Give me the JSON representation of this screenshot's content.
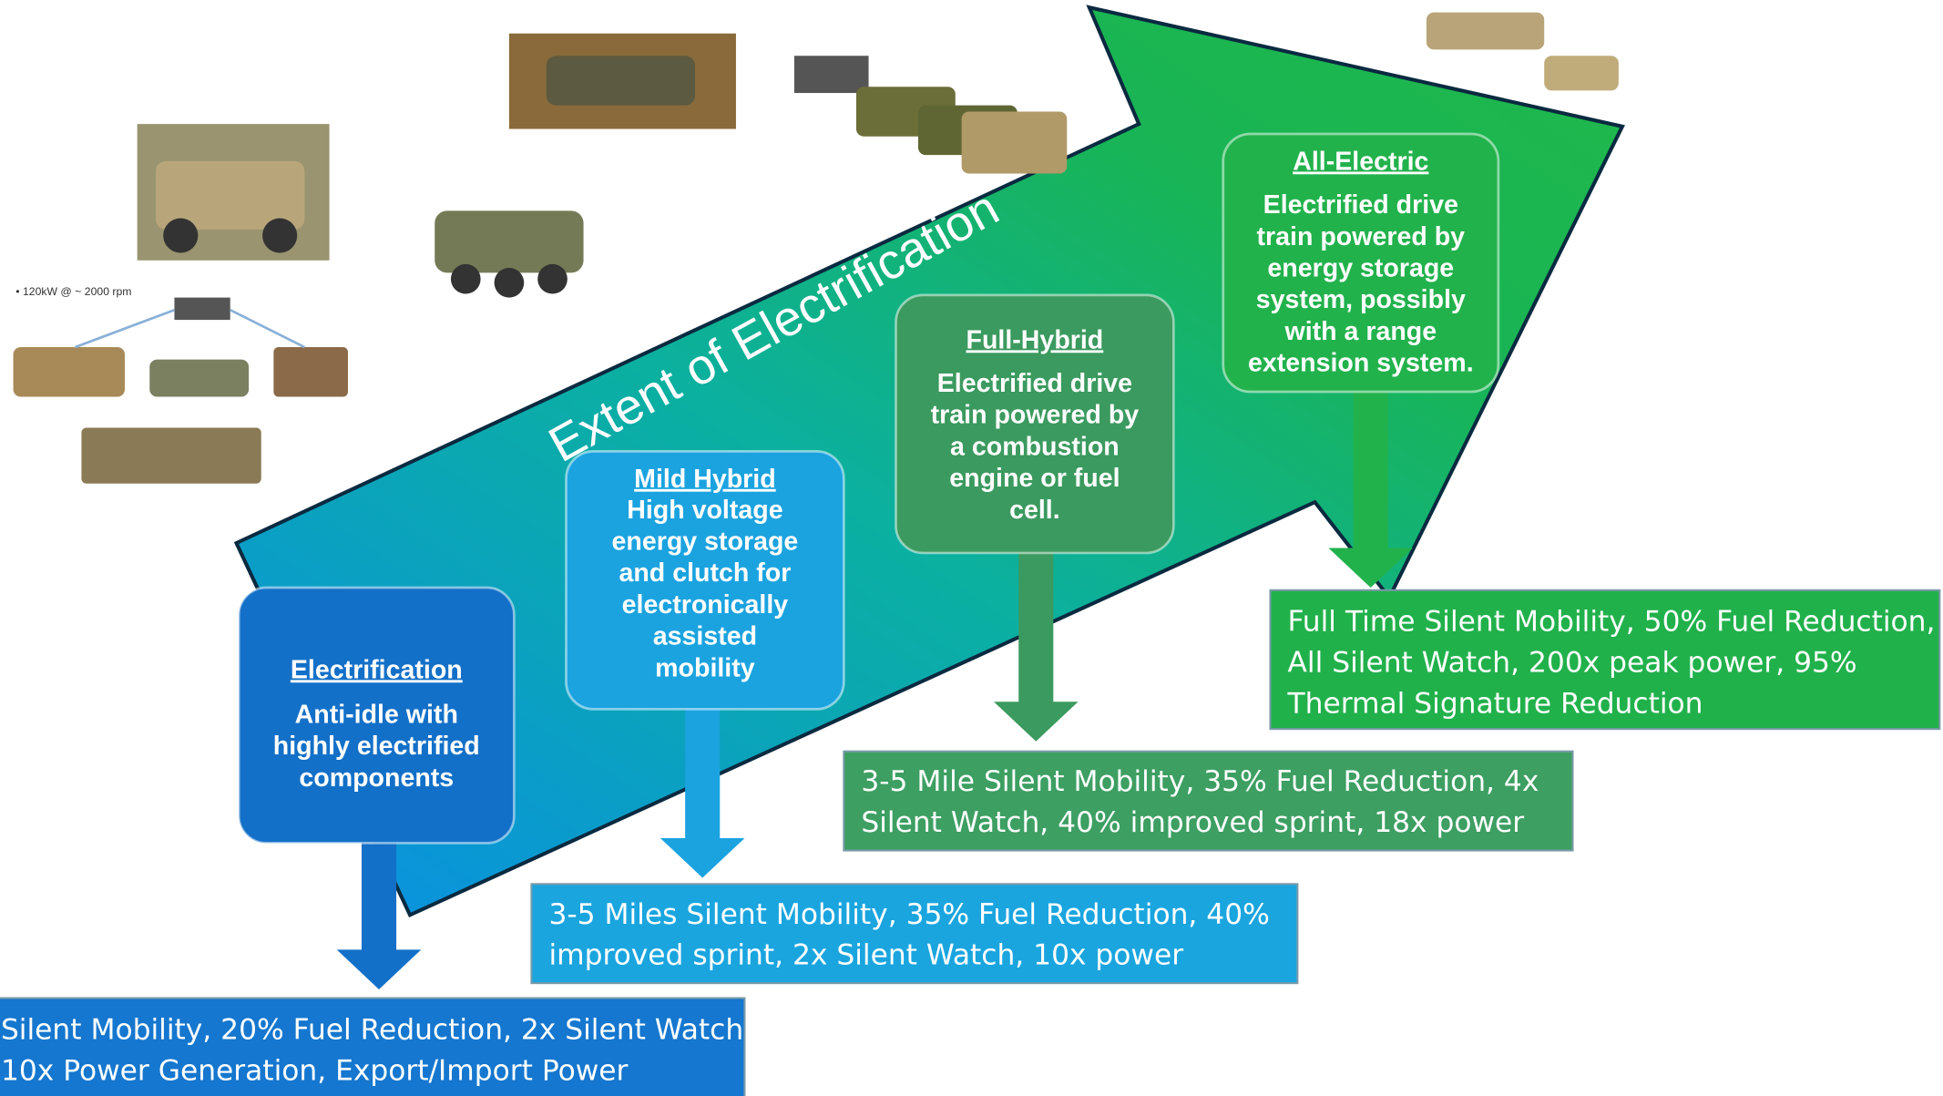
{
  "arrow_label": "Extent of Electrification",
  "caption": "• 120kW @ ~ 2000 rpm",
  "stages": [
    {
      "title": "Electrification",
      "description": [
        "Anti-idle with",
        "highly electrified",
        "components"
      ],
      "outcome": [
        "Silent Mobility, 20% Fuel Reduction, 2x Silent Watch,",
        "10x Power Generation, Export/Import Power"
      ]
    },
    {
      "title": "Mild Hybrid",
      "description": [
        "High voltage",
        "energy storage",
        "and clutch for",
        "electronically",
        "assisted",
        "mobility"
      ],
      "outcome": [
        "3-5 Miles Silent Mobility, 35% Fuel Reduction, 40%",
        "improved sprint, 2x Silent Watch, 10x power"
      ]
    },
    {
      "title": "Full-Hybrid",
      "description": [
        "Electrified drive",
        "train powered by",
        "a combustion",
        "engine or fuel",
        "cell."
      ],
      "outcome": [
        "3-5 Mile Silent Mobility, 35% Fuel Reduction, 4x",
        "Silent Watch, 40% improved sprint, 18x power"
      ]
    },
    {
      "title": "All-Electric",
      "description": [
        "Electrified drive",
        "train powered by",
        "energy storage",
        "system, possibly",
        "with a range",
        "extension system."
      ],
      "outcome": [
        "Full Time Silent Mobility, 50% Fuel Reduction,",
        "All Silent Watch, 200x peak power, 95%",
        "Thermal Signature Reduction"
      ]
    }
  ]
}
